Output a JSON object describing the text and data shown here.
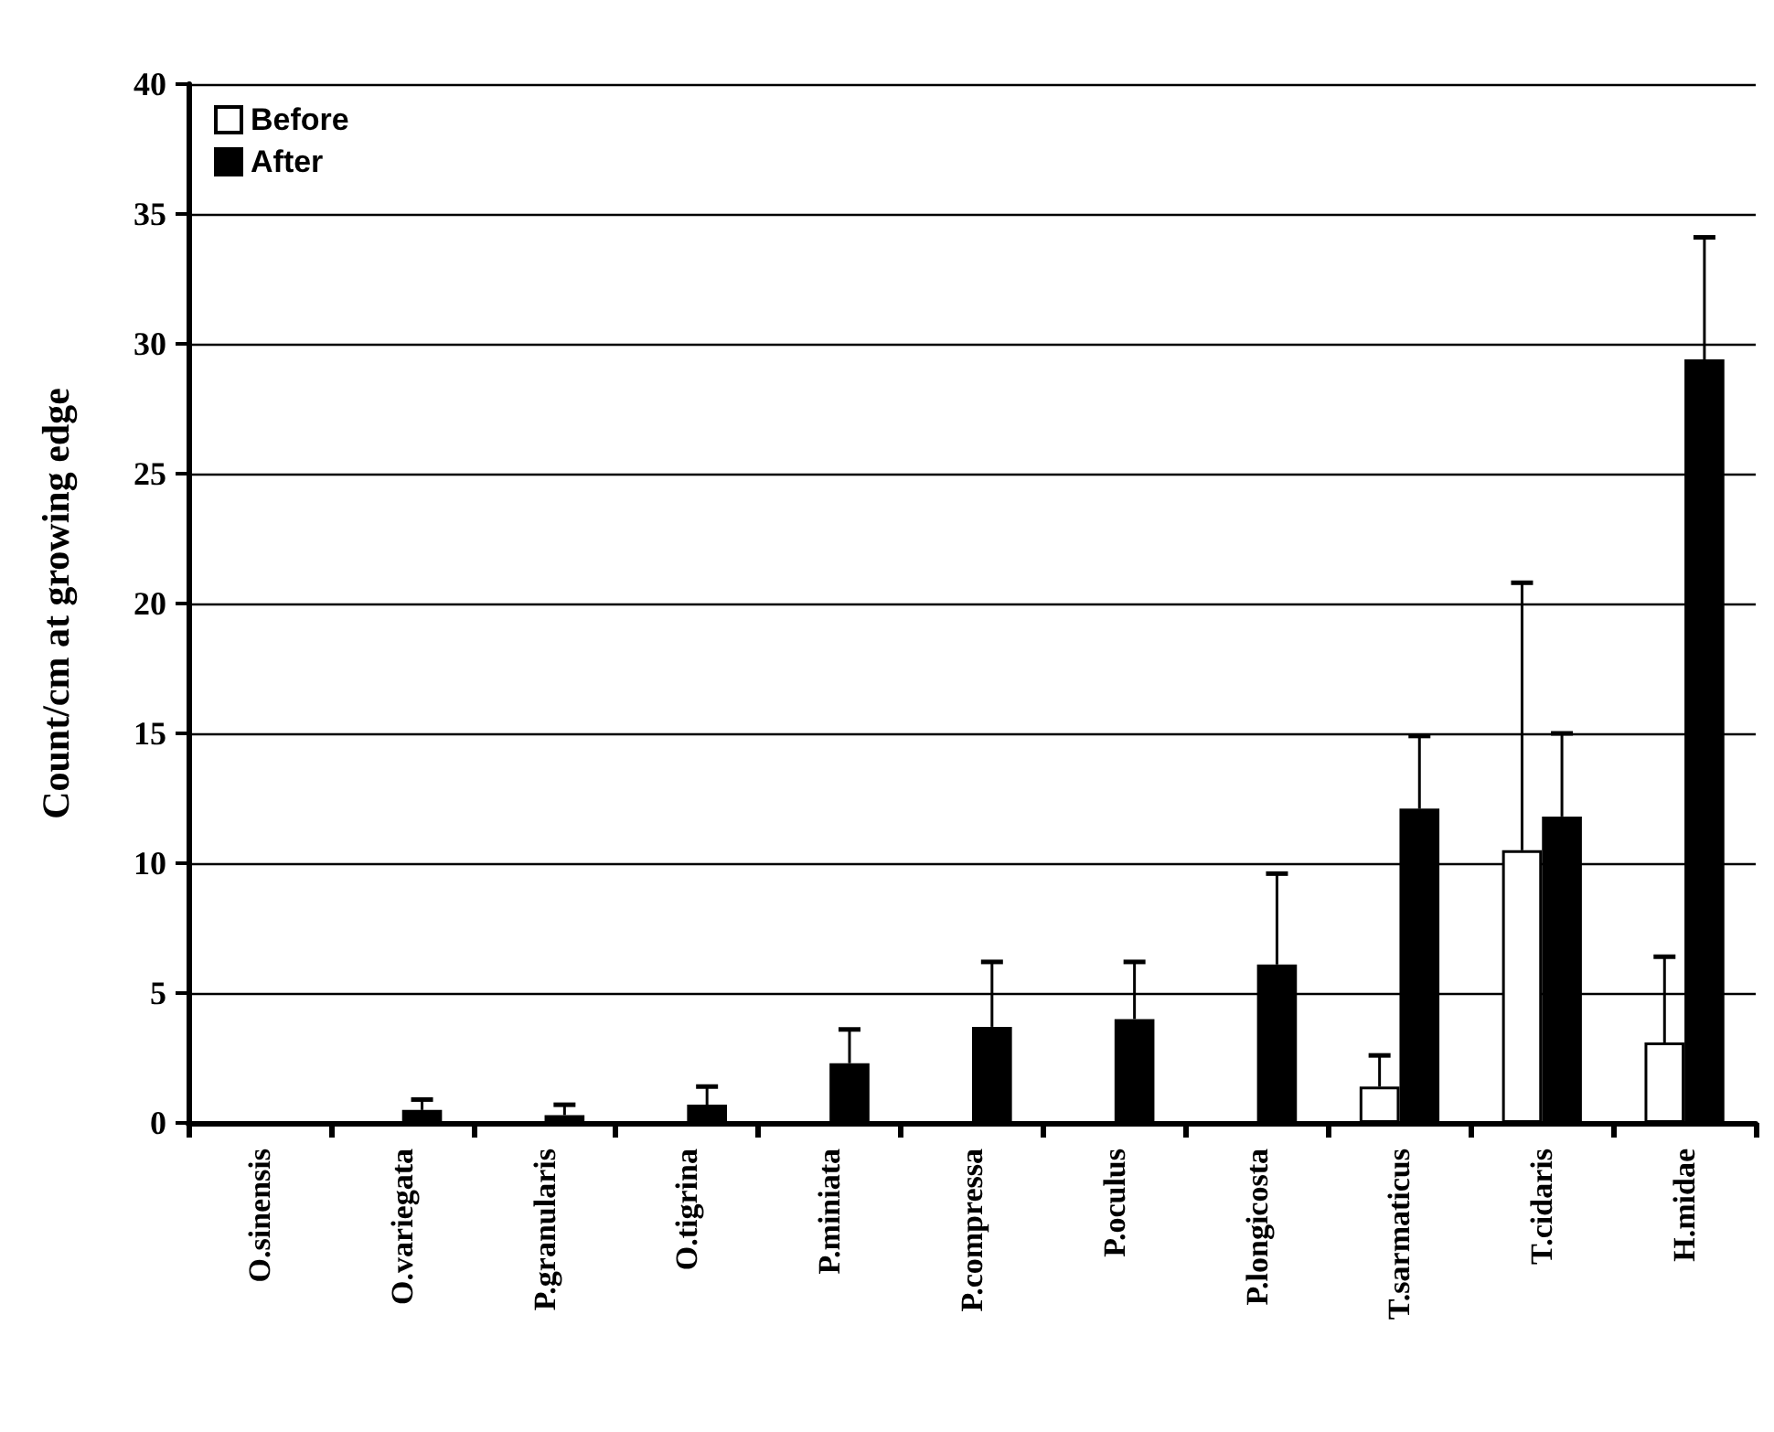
{
  "chart_data": {
    "type": "bar",
    "ylabel": "Count/cm at growing edge",
    "categories": [
      "O.sinensis",
      "O.variegata",
      "P.granularis",
      "O.tigrina",
      "P.miniata",
      "P.compressa",
      "P.oculus",
      "P.longicosta",
      "T.sarmaticus",
      "T.cidaris",
      "H.midae"
    ],
    "series": [
      {
        "name": "Before",
        "color": "#ffffff",
        "values": [
          null,
          null,
          null,
          null,
          null,
          null,
          null,
          null,
          1.4,
          10.5,
          3.1
        ],
        "errors": [
          null,
          null,
          null,
          null,
          null,
          null,
          null,
          null,
          [
            1.4,
            2.6
          ],
          [
            10.5,
            20.8
          ],
          [
            3.1,
            6.4
          ]
        ]
      },
      {
        "name": "After",
        "color": "#000000",
        "values": [
          null,
          0.5,
          0.3,
          0.7,
          2.3,
          3.7,
          4.0,
          6.1,
          12.1,
          11.8,
          29.4
        ],
        "errors": [
          null,
          [
            0.5,
            0.9
          ],
          [
            0.3,
            0.7
          ],
          [
            0.7,
            1.4
          ],
          [
            2.3,
            3.6
          ],
          [
            3.7,
            6.2
          ],
          [
            4.0,
            6.2
          ],
          [
            6.1,
            9.6
          ],
          [
            12.1,
            14.9
          ],
          [
            11.8,
            15.0
          ],
          [
            29.4,
            34.1
          ]
        ]
      }
    ],
    "ylim": [
      0,
      40
    ],
    "yticks": [
      0,
      5,
      10,
      15,
      20,
      25,
      30,
      35,
      40
    ],
    "grid": "y",
    "legend": "top left"
  }
}
